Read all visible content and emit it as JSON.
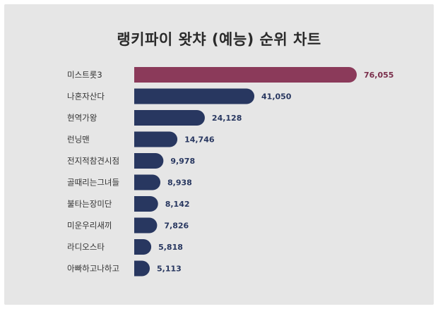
{
  "chart_data": {
    "type": "bar",
    "orientation": "horizontal",
    "title": "랭키파이 왓챠 (예능) 순위 차트",
    "categories": [
      "미스트롯3",
      "나혼자산다",
      "현역가왕",
      "런닝맨",
      "전지적참견시점",
      "골때리는그녀들",
      "불타는장미단",
      "미운우리새끼",
      "라디오스타",
      "아빠하고나하고"
    ],
    "values": [
      76055,
      41050,
      24128,
      14746,
      9978,
      8938,
      8142,
      7826,
      5818,
      5113
    ],
    "value_labels": [
      "76,055",
      "41,050",
      "24,128",
      "14,746",
      "9,978",
      "8,938",
      "8,142",
      "7,826",
      "5,818",
      "5,113"
    ],
    "highlight_index": 0,
    "xlim": [
      0,
      76055
    ],
    "grid": false,
    "legend": "none"
  },
  "colors": {
    "background": "#e6e6e6",
    "highlight_bar": "#8b3a5a",
    "highlight_label": "#7a2e4b",
    "bar": "#283760",
    "value_label": "#283760"
  }
}
